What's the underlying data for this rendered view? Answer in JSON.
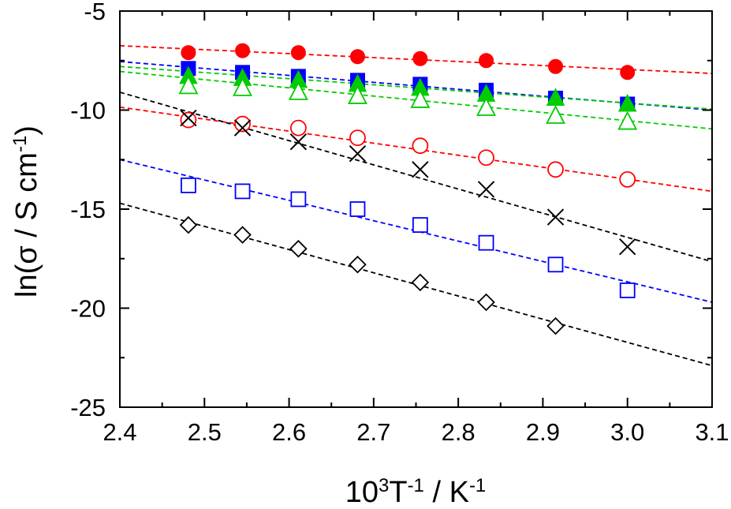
{
  "chart_data": {
    "type": "scatter",
    "xlabel": {
      "main": "10",
      "sup1": "3",
      "mid": "T",
      "sup2": "-1",
      "tail": " / K",
      "sup3": "-1"
    },
    "ylabel": {
      "main": "ln(σ / S cm",
      "sup": "-1",
      "tail": ")"
    },
    "xlim": [
      2.4,
      3.1
    ],
    "ylim": [
      -25,
      -5
    ],
    "x_ticks": [
      "2.4",
      "2.5",
      "2.6",
      "2.7",
      "2.8",
      "2.9",
      "3.0",
      "3.1"
    ],
    "y_ticks": [
      "-5",
      "-10",
      "-15",
      "-20",
      "-25"
    ],
    "grid": false,
    "legend": "none",
    "series": [
      {
        "marker": "circle-filled",
        "color": "#ff0000",
        "x": [
          2.481,
          2.545,
          2.611,
          2.681,
          2.755,
          2.833,
          2.915,
          3.0
        ],
        "y": [
          -7.1,
          -7.0,
          -7.1,
          -7.3,
          -7.4,
          -7.5,
          -7.8,
          -8.1
        ],
        "fit": [
          [
            2.4,
            -6.75
          ],
          [
            3.1,
            -8.15
          ]
        ]
      },
      {
        "marker": "square-filled",
        "color": "#0000ff",
        "x": [
          2.481,
          2.545,
          2.611,
          2.681,
          2.755,
          2.833,
          2.915,
          3.0
        ],
        "y": [
          -7.9,
          -8.1,
          -8.3,
          -8.5,
          -8.7,
          -9.0,
          -9.4,
          -9.7
        ],
        "fit": [
          [
            2.4,
            -7.55
          ],
          [
            3.1,
            -10.0
          ]
        ]
      },
      {
        "marker": "triangle-filled",
        "color": "#00cc00",
        "x": [
          2.481,
          2.545,
          2.611,
          2.681,
          2.755,
          2.833,
          2.915,
          3.0
        ],
        "y": [
          -8.3,
          -8.4,
          -8.5,
          -8.7,
          -8.9,
          -9.2,
          -9.4,
          -9.7
        ],
        "fit": [
          [
            2.4,
            -7.8
          ],
          [
            3.1,
            -9.95
          ]
        ]
      },
      {
        "marker": "triangle-open",
        "color": "#00cc00",
        "x": [
          2.481,
          2.545,
          2.611,
          2.681,
          2.755,
          2.833,
          2.915,
          3.0
        ],
        "y": [
          -8.8,
          -8.9,
          -9.1,
          -9.3,
          -9.5,
          -9.9,
          -10.3,
          -10.6
        ],
        "fit": [
          [
            2.4,
            -8.05
          ],
          [
            3.1,
            -10.95
          ]
        ]
      },
      {
        "marker": "circle-open",
        "color": "#ff0000",
        "x": [
          2.481,
          2.545,
          2.611,
          2.681,
          2.755,
          2.833,
          2.915,
          3.0
        ],
        "y": [
          -10.5,
          -10.7,
          -10.9,
          -11.4,
          -11.8,
          -12.4,
          -13.0,
          -13.5
        ],
        "fit": [
          [
            2.4,
            -9.85
          ],
          [
            3.1,
            -14.1
          ]
        ]
      },
      {
        "marker": "cross",
        "color": "#000000",
        "x": [
          2.481,
          2.545,
          2.611,
          2.681,
          2.755,
          2.833,
          2.915,
          3.0
        ],
        "y": [
          -10.4,
          -10.9,
          -11.6,
          -12.2,
          -13.0,
          -14.0,
          -15.4,
          -16.9
        ],
        "fit": [
          [
            2.4,
            -9.1
          ],
          [
            3.1,
            -17.65
          ]
        ]
      },
      {
        "marker": "square-open",
        "color": "#0000ff",
        "x": [
          2.481,
          2.545,
          2.611,
          2.681,
          2.755,
          2.833,
          2.915,
          3.0
        ],
        "y": [
          -13.8,
          -14.1,
          -14.5,
          -15.0,
          -15.8,
          -16.7,
          -17.8,
          -19.1
        ],
        "fit": [
          [
            2.4,
            -12.5
          ],
          [
            3.1,
            -19.7
          ]
        ]
      },
      {
        "marker": "diamond-open",
        "color": "#000000",
        "x": [
          2.481,
          2.545,
          2.611,
          2.681,
          2.755,
          2.833,
          2.915
        ],
        "y": [
          -15.8,
          -16.3,
          -17.0,
          -17.8,
          -18.7,
          -19.7,
          -20.9
        ],
        "fit": [
          [
            2.4,
            -14.7
          ],
          [
            3.1,
            -22.9
          ]
        ]
      }
    ]
  }
}
